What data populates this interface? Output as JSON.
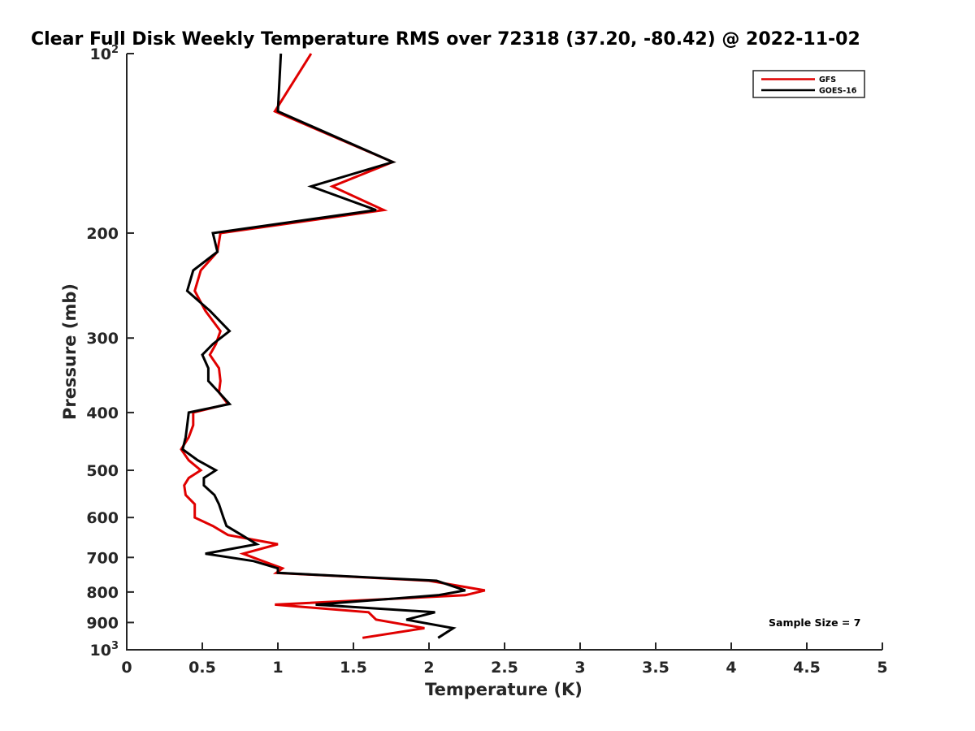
{
  "chart_data": {
    "type": "line",
    "title": "Clear Full Disk Weekly Temperature RMS over 72318 (37.20, -80.42) @ 2022-11-02",
    "xlabel": "Temperature (K)",
    "ylabel": "Pressure (mb)",
    "xlim": [
      0,
      5
    ],
    "ylim": [
      100,
      1000
    ],
    "y_scale": "log",
    "y_reversed": true,
    "x_ticks": [
      0,
      0.5,
      1,
      1.5,
      2,
      2.5,
      3,
      3.5,
      4,
      4.5,
      5
    ],
    "x_tick_labels": [
      "0",
      "0.5",
      "1",
      "1.5",
      "2",
      "2.5",
      "3",
      "3.5",
      "4",
      "4.5",
      "5"
    ],
    "y_ticks": [
      {
        "value": 100,
        "label": "10",
        "sup": "2"
      },
      {
        "value": 200,
        "label": "200",
        "sup": ""
      },
      {
        "value": 300,
        "label": "300",
        "sup": ""
      },
      {
        "value": 400,
        "label": "400",
        "sup": ""
      },
      {
        "value": 500,
        "label": "500",
        "sup": ""
      },
      {
        "value": 600,
        "label": "600",
        "sup": ""
      },
      {
        "value": 700,
        "label": "700",
        "sup": ""
      },
      {
        "value": 800,
        "label": "800",
        "sup": ""
      },
      {
        "value": 900,
        "label": "900",
        "sup": ""
      },
      {
        "value": 1000,
        "label": "10",
        "sup": "3"
      }
    ],
    "grid": false,
    "legend_position": "top-right",
    "annotation": "Sample Size = 7",
    "series": [
      {
        "name": "GFS",
        "color": "#e00000",
        "points": [
          [
            1.22,
            100
          ],
          [
            0.98,
            125
          ],
          [
            1.76,
            152
          ],
          [
            1.36,
            167
          ],
          [
            1.7,
            183
          ],
          [
            0.62,
            200
          ],
          [
            0.6,
            215
          ],
          [
            0.49,
            231
          ],
          [
            0.45,
            250
          ],
          [
            0.52,
            270
          ],
          [
            0.62,
            292
          ],
          [
            0.59,
            307
          ],
          [
            0.55,
            320
          ],
          [
            0.61,
            337
          ],
          [
            0.62,
            354
          ],
          [
            0.61,
            370
          ],
          [
            0.67,
            387
          ],
          [
            0.44,
            400
          ],
          [
            0.44,
            420
          ],
          [
            0.41,
            440
          ],
          [
            0.36,
            461
          ],
          [
            0.41,
            481
          ],
          [
            0.49,
            500
          ],
          [
            0.41,
            515
          ],
          [
            0.38,
            530
          ],
          [
            0.39,
            550
          ],
          [
            0.45,
            570
          ],
          [
            0.45,
            590
          ],
          [
            0.45,
            600
          ],
          [
            0.57,
            620
          ],
          [
            0.67,
            642
          ],
          [
            1.0,
            665
          ],
          [
            0.77,
            690
          ],
          [
            0.9,
            710
          ],
          [
            1.03,
            730
          ],
          [
            0.99,
            743
          ],
          [
            2.0,
            766
          ],
          [
            2.37,
            795
          ],
          [
            2.24,
            810
          ],
          [
            0.98,
            840
          ],
          [
            1.6,
            865
          ],
          [
            1.65,
            890
          ],
          [
            1.97,
            920
          ],
          [
            1.56,
            955
          ]
        ]
      },
      {
        "name": "GOES-16",
        "color": "#000000",
        "points": [
          [
            1.02,
            100
          ],
          [
            1.0,
            125
          ],
          [
            1.76,
            152
          ],
          [
            1.22,
            167
          ],
          [
            1.65,
            183
          ],
          [
            0.57,
            200
          ],
          [
            0.6,
            215
          ],
          [
            0.44,
            231
          ],
          [
            0.4,
            250
          ],
          [
            0.55,
            270
          ],
          [
            0.68,
            292
          ],
          [
            0.57,
            307
          ],
          [
            0.5,
            320
          ],
          [
            0.54,
            337
          ],
          [
            0.54,
            354
          ],
          [
            0.61,
            370
          ],
          [
            0.68,
            387
          ],
          [
            0.41,
            400
          ],
          [
            0.4,
            420
          ],
          [
            0.39,
            440
          ],
          [
            0.37,
            461
          ],
          [
            0.47,
            481
          ],
          [
            0.59,
            500
          ],
          [
            0.51,
            515
          ],
          [
            0.51,
            530
          ],
          [
            0.58,
            550
          ],
          [
            0.61,
            570
          ],
          [
            0.63,
            590
          ],
          [
            0.64,
            600
          ],
          [
            0.66,
            620
          ],
          [
            0.76,
            642
          ],
          [
            0.86,
            665
          ],
          [
            0.52,
            690
          ],
          [
            0.84,
            710
          ],
          [
            1.0,
            730
          ],
          [
            1.0,
            743
          ],
          [
            2.05,
            766
          ],
          [
            2.24,
            795
          ],
          [
            2.06,
            810
          ],
          [
            1.25,
            840
          ],
          [
            2.04,
            865
          ],
          [
            1.85,
            890
          ],
          [
            2.16,
            920
          ],
          [
            2.06,
            955
          ]
        ]
      }
    ]
  }
}
